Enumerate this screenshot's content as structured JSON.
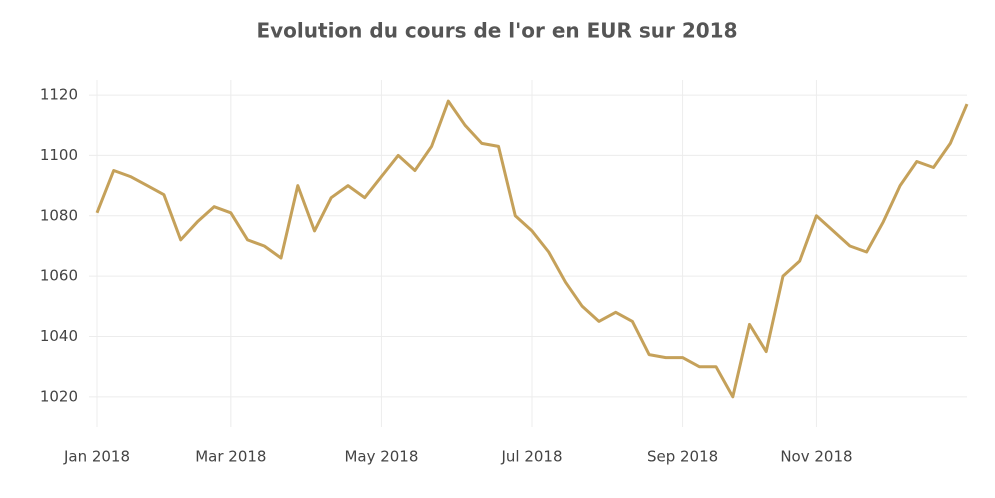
{
  "chart_data": {
    "type": "line",
    "title": "Evolution du cours de l'or en EUR sur 2018",
    "categories": [
      "Jan 2018",
      null,
      null,
      null,
      null,
      null,
      null,
      null,
      "Mar 2018",
      null,
      null,
      null,
      null,
      null,
      null,
      null,
      null,
      "May 2018",
      null,
      null,
      null,
      null,
      null,
      null,
      null,
      null,
      "Jul 2018",
      null,
      null,
      null,
      null,
      null,
      null,
      null,
      null,
      "Sep 2018",
      null,
      null,
      null,
      null,
      null,
      null,
      null,
      "Nov 2018",
      null,
      null,
      null,
      null,
      null,
      null,
      null,
      null,
      null
    ],
    "series": [
      {
        "name": "EUR",
        "color": "#c5a15a",
        "values": [
          1081,
          1095,
          1093,
          1090,
          1087,
          1072,
          1078,
          1083,
          1081,
          1072,
          1070,
          1066,
          1090,
          1075,
          1086,
          1090,
          1086,
          1093,
          1100,
          1095,
          1103,
          1118,
          1110,
          1104,
          1103,
          1080,
          1075,
          1068,
          1058,
          1050,
          1045,
          1048,
          1045,
          1034,
          1033,
          1033,
          1030,
          1030,
          1020,
          1044,
          1035,
          1060,
          1065,
          1080,
          1075,
          1070,
          1068,
          1078,
          1090,
          1098,
          1096,
          1104,
          1117
        ]
      }
    ],
    "ylim": [
      1010,
      1125
    ],
    "yticks": [
      1020,
      1040,
      1060,
      1080,
      1100,
      1120
    ],
    "grid": true
  }
}
